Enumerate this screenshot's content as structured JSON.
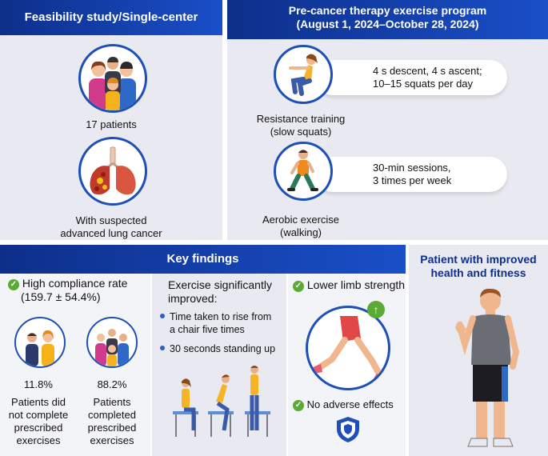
{
  "feasibility": {
    "title": "Feasibility study/Single-center",
    "patients": "17 patients",
    "condition_line1": "With suspected",
    "condition_line2": "advanced lung cancer"
  },
  "program": {
    "title_line1": "Pre-cancer therapy exercise program",
    "title_line2": "(August 1, 2024–October 28, 2024)",
    "resistance": {
      "label_line1": "Resistance training",
      "label_line2": "(slow squats)",
      "detail_line1": "4 s descent, 4 s ascent;",
      "detail_line2": "10–15 squats per day"
    },
    "aerobic": {
      "label_line1": "Aerobic exercise",
      "label_line2": "(walking)",
      "detail_line1": "30-min sessions,",
      "detail_line2": "3 times per week"
    }
  },
  "findings": {
    "title": "Key findings",
    "compliance": {
      "line1": "High compliance rate",
      "line2": "(159.7 ± 54.4%)",
      "not_complete_pct": "11.8%",
      "not_complete_line1": "Patients did",
      "not_complete_line2": "not complete",
      "not_complete_line3": "prescribed",
      "not_complete_line4": "exercises",
      "complete_pct": "88.2%",
      "complete_line1": "Patients",
      "complete_line2": "completed",
      "complete_line3": "prescribed",
      "complete_line4": "exercises"
    },
    "improved": {
      "title_line1": "Exercise significantly",
      "title_line2": "improved:",
      "item1_line1": "Time taken to rise from",
      "item1_line2": "a chair five times",
      "item2": "30 seconds standing up"
    },
    "strength": {
      "title": "Lower limb strength",
      "adverse": "No adverse effects"
    }
  },
  "outcome": {
    "title_line1": "Patient with improved",
    "title_line2": "health and fitness"
  },
  "colors": {
    "header_dark": "#0d2f8a",
    "header_light": "#1a4fc8",
    "panel_bg": "#e9eaf1",
    "accent_green": "#5aaa33",
    "circle_border": "#1e4fb8"
  }
}
